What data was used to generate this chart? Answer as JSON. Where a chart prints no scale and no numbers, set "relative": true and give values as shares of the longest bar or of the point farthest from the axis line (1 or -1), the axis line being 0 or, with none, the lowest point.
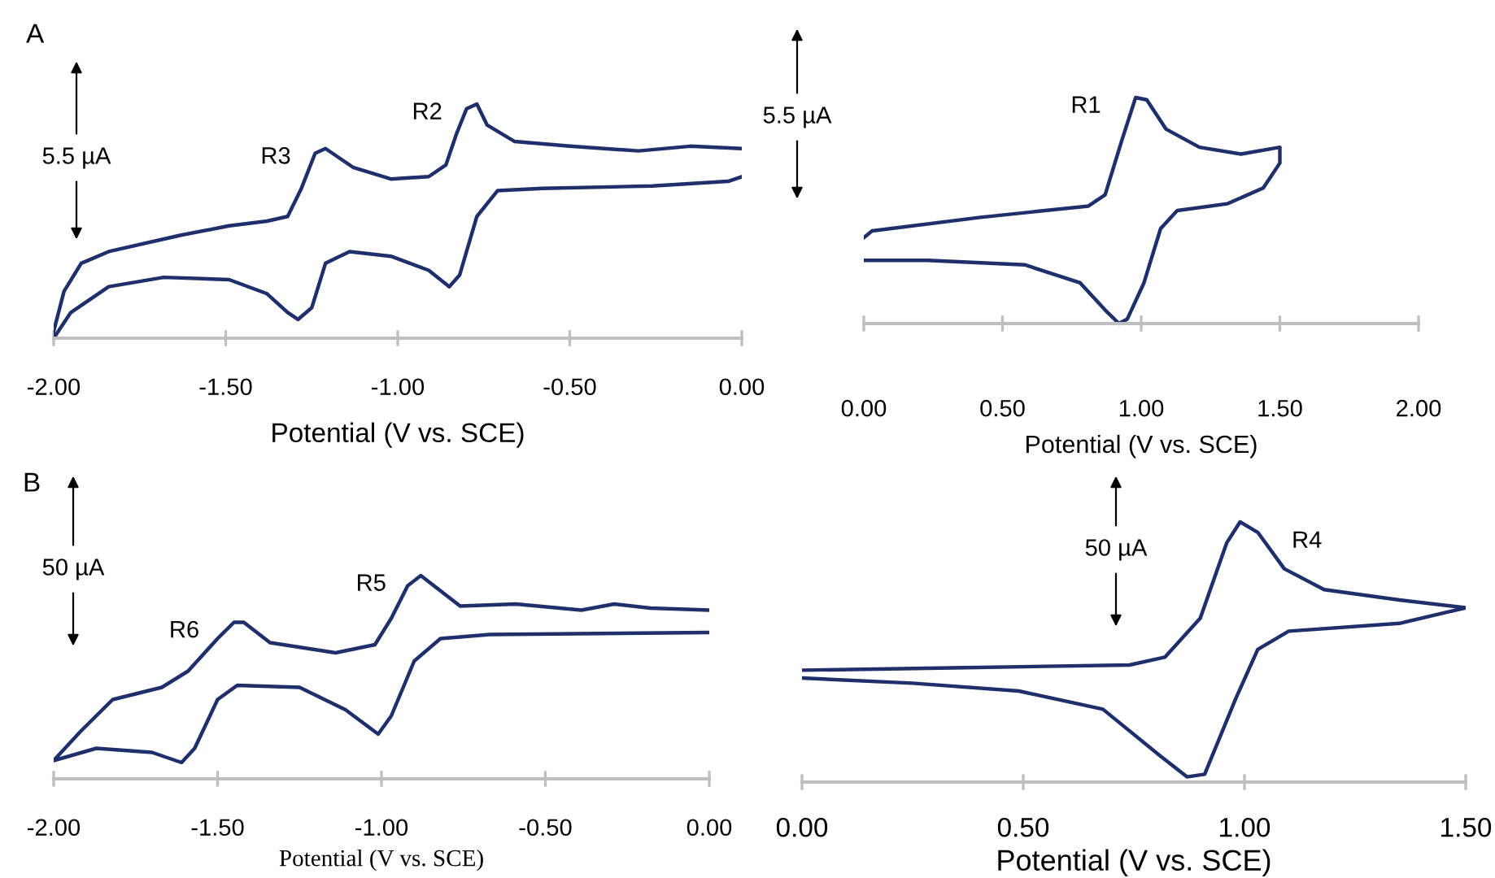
{
  "chart_data": [
    {
      "type": "line",
      "relative": true,
      "xlabel": "Potential (V vs. SCE)",
      "xlim": [
        -2.0,
        0.0
      ],
      "xticks": [
        {
          "value": -2.0,
          "label": "-2.00"
        },
        {
          "value": -1.5,
          "label": "-1.50"
        },
        {
          "value": -1.0,
          "label": "-1.00"
        },
        {
          "value": -0.5,
          "label": "-0.50"
        },
        {
          "value": 0.0,
          "label": "0.00"
        }
      ],
      "annotations": [
        "A",
        "5.5 µA",
        {
          "text": "R3",
          "x": -1.21,
          "y": 0.81
        },
        {
          "text": "R2",
          "x": -0.77,
          "y": 1.0
        }
      ],
      "series": [
        {
          "color": "#1f2f6b",
          "x": [
            0,
            -0.15,
            -0.3,
            -0.5,
            -0.66,
            -0.74,
            -0.77,
            -0.8,
            -0.83,
            -0.86,
            -0.91,
            -1.02,
            -1.13,
            -1.21,
            -1.24,
            -1.28,
            -1.32,
            -1.38,
            -1.49,
            -1.63,
            -1.84,
            -1.92,
            -1.97,
            -2.0,
            -2.0,
            -1.95,
            -1.84,
            -1.68,
            -1.49,
            -1.38,
            -1.32,
            -1.29,
            -1.25,
            -1.21,
            -1.14,
            -1.02,
            -0.91,
            -0.85,
            -0.82,
            -0.77,
            -0.71,
            -0.58,
            -0.26,
            -0.04,
            0
          ],
          "values": [
            0.81,
            0.82,
            0.8,
            0.82,
            0.84,
            0.91,
            1.0,
            0.98,
            0.87,
            0.74,
            0.69,
            0.68,
            0.73,
            0.81,
            0.79,
            0.64,
            0.52,
            0.5,
            0.48,
            0.44,
            0.37,
            0.32,
            0.2,
            0.03,
            0.0,
            0.11,
            0.22,
            0.26,
            0.25,
            0.19,
            0.11,
            0.08,
            0.13,
            0.32,
            0.37,
            0.35,
            0.29,
            0.22,
            0.27,
            0.52,
            0.63,
            0.64,
            0.65,
            0.67,
            0.69
          ]
        }
      ]
    },
    {
      "type": "line",
      "relative": true,
      "xlabel": "Potential (V vs. SCE)",
      "xlim": [
        0.0,
        2.0
      ],
      "xticks": [
        {
          "value": 0.0,
          "label": "0.00"
        },
        {
          "value": 0.5,
          "label": "0.50"
        },
        {
          "value": 1.0,
          "label": "1.00"
        },
        {
          "value": 1.5,
          "label": "1.50"
        },
        {
          "value": 2.0,
          "label": "2.00"
        }
      ],
      "annotations": [
        "5.5 µA",
        {
          "text": "R1",
          "x": 0.98,
          "y": 1.0
        }
      ],
      "series": [
        {
          "color": "#1f2f6b",
          "x": [
            0,
            0.03,
            0.42,
            0.81,
            0.87,
            0.93,
            0.98,
            1.02,
            1.09,
            1.21,
            1.36,
            1.5,
            1.5,
            1.44,
            1.31,
            1.13,
            1.07,
            1.01,
            0.95,
            0.92,
            0.87,
            0.78,
            0.58,
            0.23,
            0
          ],
          "values": [
            0.38,
            0.41,
            0.47,
            0.52,
            0.57,
            0.81,
            1.0,
            0.99,
            0.86,
            0.78,
            0.75,
            0.78,
            0.71,
            0.6,
            0.53,
            0.5,
            0.42,
            0.18,
            0.02,
            0.0,
            0.06,
            0.18,
            0.26,
            0.28,
            0.28
          ]
        }
      ]
    },
    {
      "type": "line",
      "relative": true,
      "xlabel": "Potential (V vs. SCE)",
      "xlim": [
        -2.0,
        0.0
      ],
      "xticks": [
        {
          "value": -2.0,
          "label": "-2.00"
        },
        {
          "value": -1.5,
          "label": "-1.50"
        },
        {
          "value": -1.0,
          "label": "-1.00"
        },
        {
          "value": -0.5,
          "label": "-0.50"
        },
        {
          "value": 0.0,
          "label": "0.00"
        }
      ],
      "annotations": [
        "B",
        "50 µA",
        {
          "text": "R6",
          "x": -1.45,
          "y": 0.77
        },
        {
          "text": "R5",
          "x": -0.88,
          "y": 1.0
        }
      ],
      "series": [
        {
          "color": "#1f2f6b",
          "x": [
            0,
            -0.18,
            -0.29,
            -0.39,
            -0.59,
            -0.76,
            -0.84,
            -0.88,
            -0.92,
            -0.97,
            -1.02,
            -1.14,
            -1.34,
            -1.42,
            -1.45,
            -1.5,
            -1.59,
            -1.67,
            -1.82,
            -1.92,
            -2.0,
            -1.87,
            -1.7,
            -1.61,
            -1.57,
            -1.5,
            -1.44,
            -1.25,
            -1.11,
            -1.01,
            -0.97,
            -0.9,
            -0.82,
            -0.67,
            0
          ],
          "values": [
            0.83,
            0.84,
            0.86,
            0.83,
            0.86,
            0.85,
            0.95,
            1.0,
            0.95,
            0.79,
            0.66,
            0.62,
            0.67,
            0.77,
            0.77,
            0.69,
            0.53,
            0.45,
            0.39,
            0.23,
            0.09,
            0.15,
            0.13,
            0.08,
            0.15,
            0.39,
            0.46,
            0.45,
            0.34,
            0.22,
            0.31,
            0.58,
            0.69,
            0.71,
            0.72
          ]
        }
      ]
    },
    {
      "type": "line",
      "relative": true,
      "xlabel": "Potential (V vs. SCE)",
      "xlim": [
        0.0,
        1.5
      ],
      "xticks": [
        {
          "value": 0.0,
          "label": "0.00"
        },
        {
          "value": 0.5,
          "label": "0.50"
        },
        {
          "value": 1.0,
          "label": "1.00"
        },
        {
          "value": 1.5,
          "label": "1.50"
        }
      ],
      "annotations": [
        "50 µA",
        {
          "text": "R4",
          "x": 1.09,
          "y": 0.82
        }
      ],
      "series": [
        {
          "color": "#1f2f6b",
          "x": [
            0,
            0.37,
            0.74,
            0.82,
            0.9,
            0.96,
            0.99,
            1.03,
            1.09,
            1.18,
            1.35,
            1.5,
            1.35,
            1.1,
            1.03,
            0.98,
            0.91,
            0.87,
            0.81,
            0.68,
            0.49,
            0.25,
            0
          ],
          "values": [
            0.43,
            0.44,
            0.45,
            0.48,
            0.63,
            0.92,
            1.0,
            0.96,
            0.82,
            0.74,
            0.7,
            0.67,
            0.61,
            0.58,
            0.51,
            0.32,
            0.03,
            0.02,
            0.1,
            0.28,
            0.35,
            0.38,
            0.4
          ]
        }
      ]
    }
  ]
}
